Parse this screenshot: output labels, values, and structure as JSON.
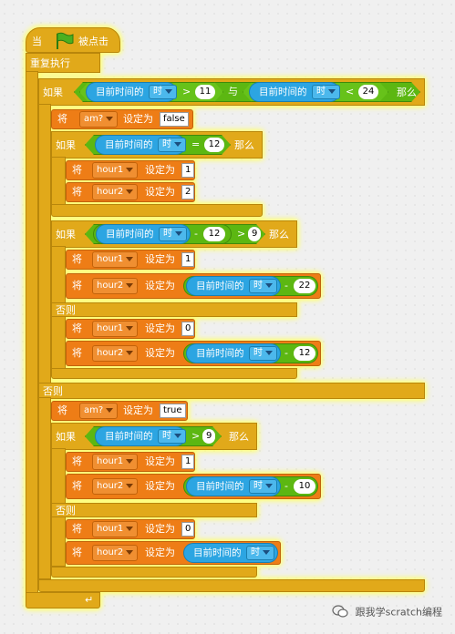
{
  "hat": {
    "label_when": "当",
    "label_clicked": "被点击"
  },
  "loop": {
    "label": "重复执行",
    "loop_arrow": "↵"
  },
  "labels": {
    "if": "如果",
    "then": "那么",
    "else": "否则",
    "set": "将",
    "set_to": "设定为",
    "and": "与"
  },
  "sensor": {
    "current_time": "目前时间的",
    "hour": "时"
  },
  "ops": {
    "gt": ">",
    "lt": "<",
    "eq": "=",
    "minus": "-"
  },
  "vars": {
    "am": "am?",
    "hour1": "hour1",
    "hour2": "hour2"
  },
  "values": {
    "n11": "11",
    "n24": "24",
    "false": "false",
    "n12": "12",
    "n1": "1",
    "n2": "2",
    "n9": "9",
    "n22": "22",
    "n0": "0",
    "true": "true",
    "n10": "10"
  },
  "watermark": "跟我学scratch编程",
  "icons": [
    "flag-icon",
    "dropdown-arrow-icon",
    "loop-arrow-icon",
    "wechat-icon"
  ],
  "colors": {
    "control": "#e1a91a",
    "data": "#ee7d16",
    "sensing": "#2ca5e2",
    "operator": "#5cb712",
    "glow": "#ffff60"
  }
}
